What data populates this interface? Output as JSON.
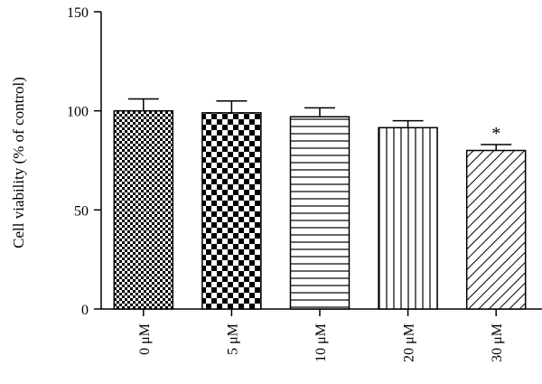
{
  "chart_data": {
    "type": "bar",
    "title": "",
    "xlabel": "",
    "ylabel": "Cell viability (% of control)",
    "ylim": [
      0,
      150
    ],
    "yticks": [
      0,
      50,
      100,
      150
    ],
    "categories": [
      "0 μM",
      "5 μM",
      "10 μM",
      "20 μM",
      "30 μM"
    ],
    "values": [
      100,
      99,
      97,
      91.5,
      80
    ],
    "errors": [
      6,
      6,
      4.5,
      3.5,
      3
    ],
    "patterns": [
      "fine-checker",
      "coarse-checker",
      "horizontal-lines",
      "vertical-lines",
      "diagonal-lines"
    ],
    "annotations": [
      "",
      "",
      "",
      "",
      "*"
    ],
    "grid": false,
    "bar_fill": "#ffffff",
    "bar_stroke": "#000000"
  }
}
